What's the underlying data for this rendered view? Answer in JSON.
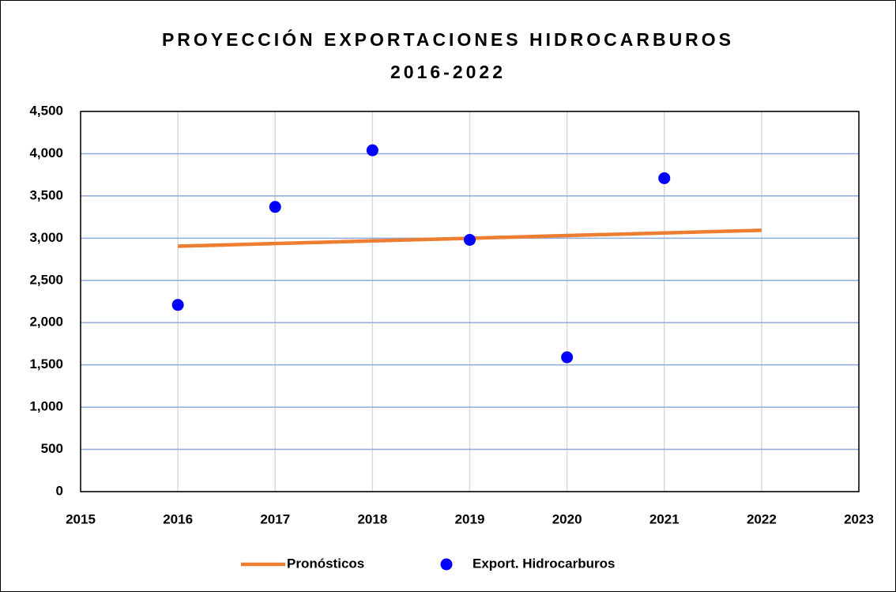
{
  "chart_data": {
    "type": "scatter",
    "title": "PROYECCIÓN EXPORTACIONES HIDROCARBUROS",
    "subtitle": "2016-2022",
    "xlim": [
      2015,
      2023
    ],
    "xticks": [
      2015,
      2016,
      2017,
      2018,
      2019,
      2020,
      2021,
      2022,
      2023
    ],
    "ylim": [
      0,
      4500
    ],
    "yticks": [
      0,
      500,
      {
        "value": 1000,
        "label": "1,000"
      },
      {
        "value": 1500,
        "label": "1,500"
      },
      {
        "value": 2000,
        "label": "2,000"
      },
      {
        "value": 2500,
        "label": "2,500"
      },
      {
        "value": 3000,
        "label": "3,000"
      },
      {
        "value": 3500,
        "label": "3,500"
      },
      {
        "value": 4000,
        "label": "4,000"
      },
      {
        "value": 4500,
        "label": "4,500"
      }
    ],
    "grid": true,
    "legend": "bottom",
    "series": [
      {
        "name": "Pronósticos",
        "type": "line",
        "color": "#ed7d31",
        "x": [
          2016,
          2017,
          2018,
          2019,
          2020,
          2021,
          2022
        ],
        "values": [
          2905,
          2936,
          2968,
          2999,
          3031,
          3062,
          3093
        ]
      },
      {
        "name": "Export. Hidrocarburos",
        "type": "scatter",
        "color": "#0000ff",
        "x": [
          2016,
          2017,
          2018,
          2019,
          2020,
          2021
        ],
        "values": [
          2210,
          3370,
          4040,
          2980,
          1590,
          3710
        ]
      }
    ]
  }
}
